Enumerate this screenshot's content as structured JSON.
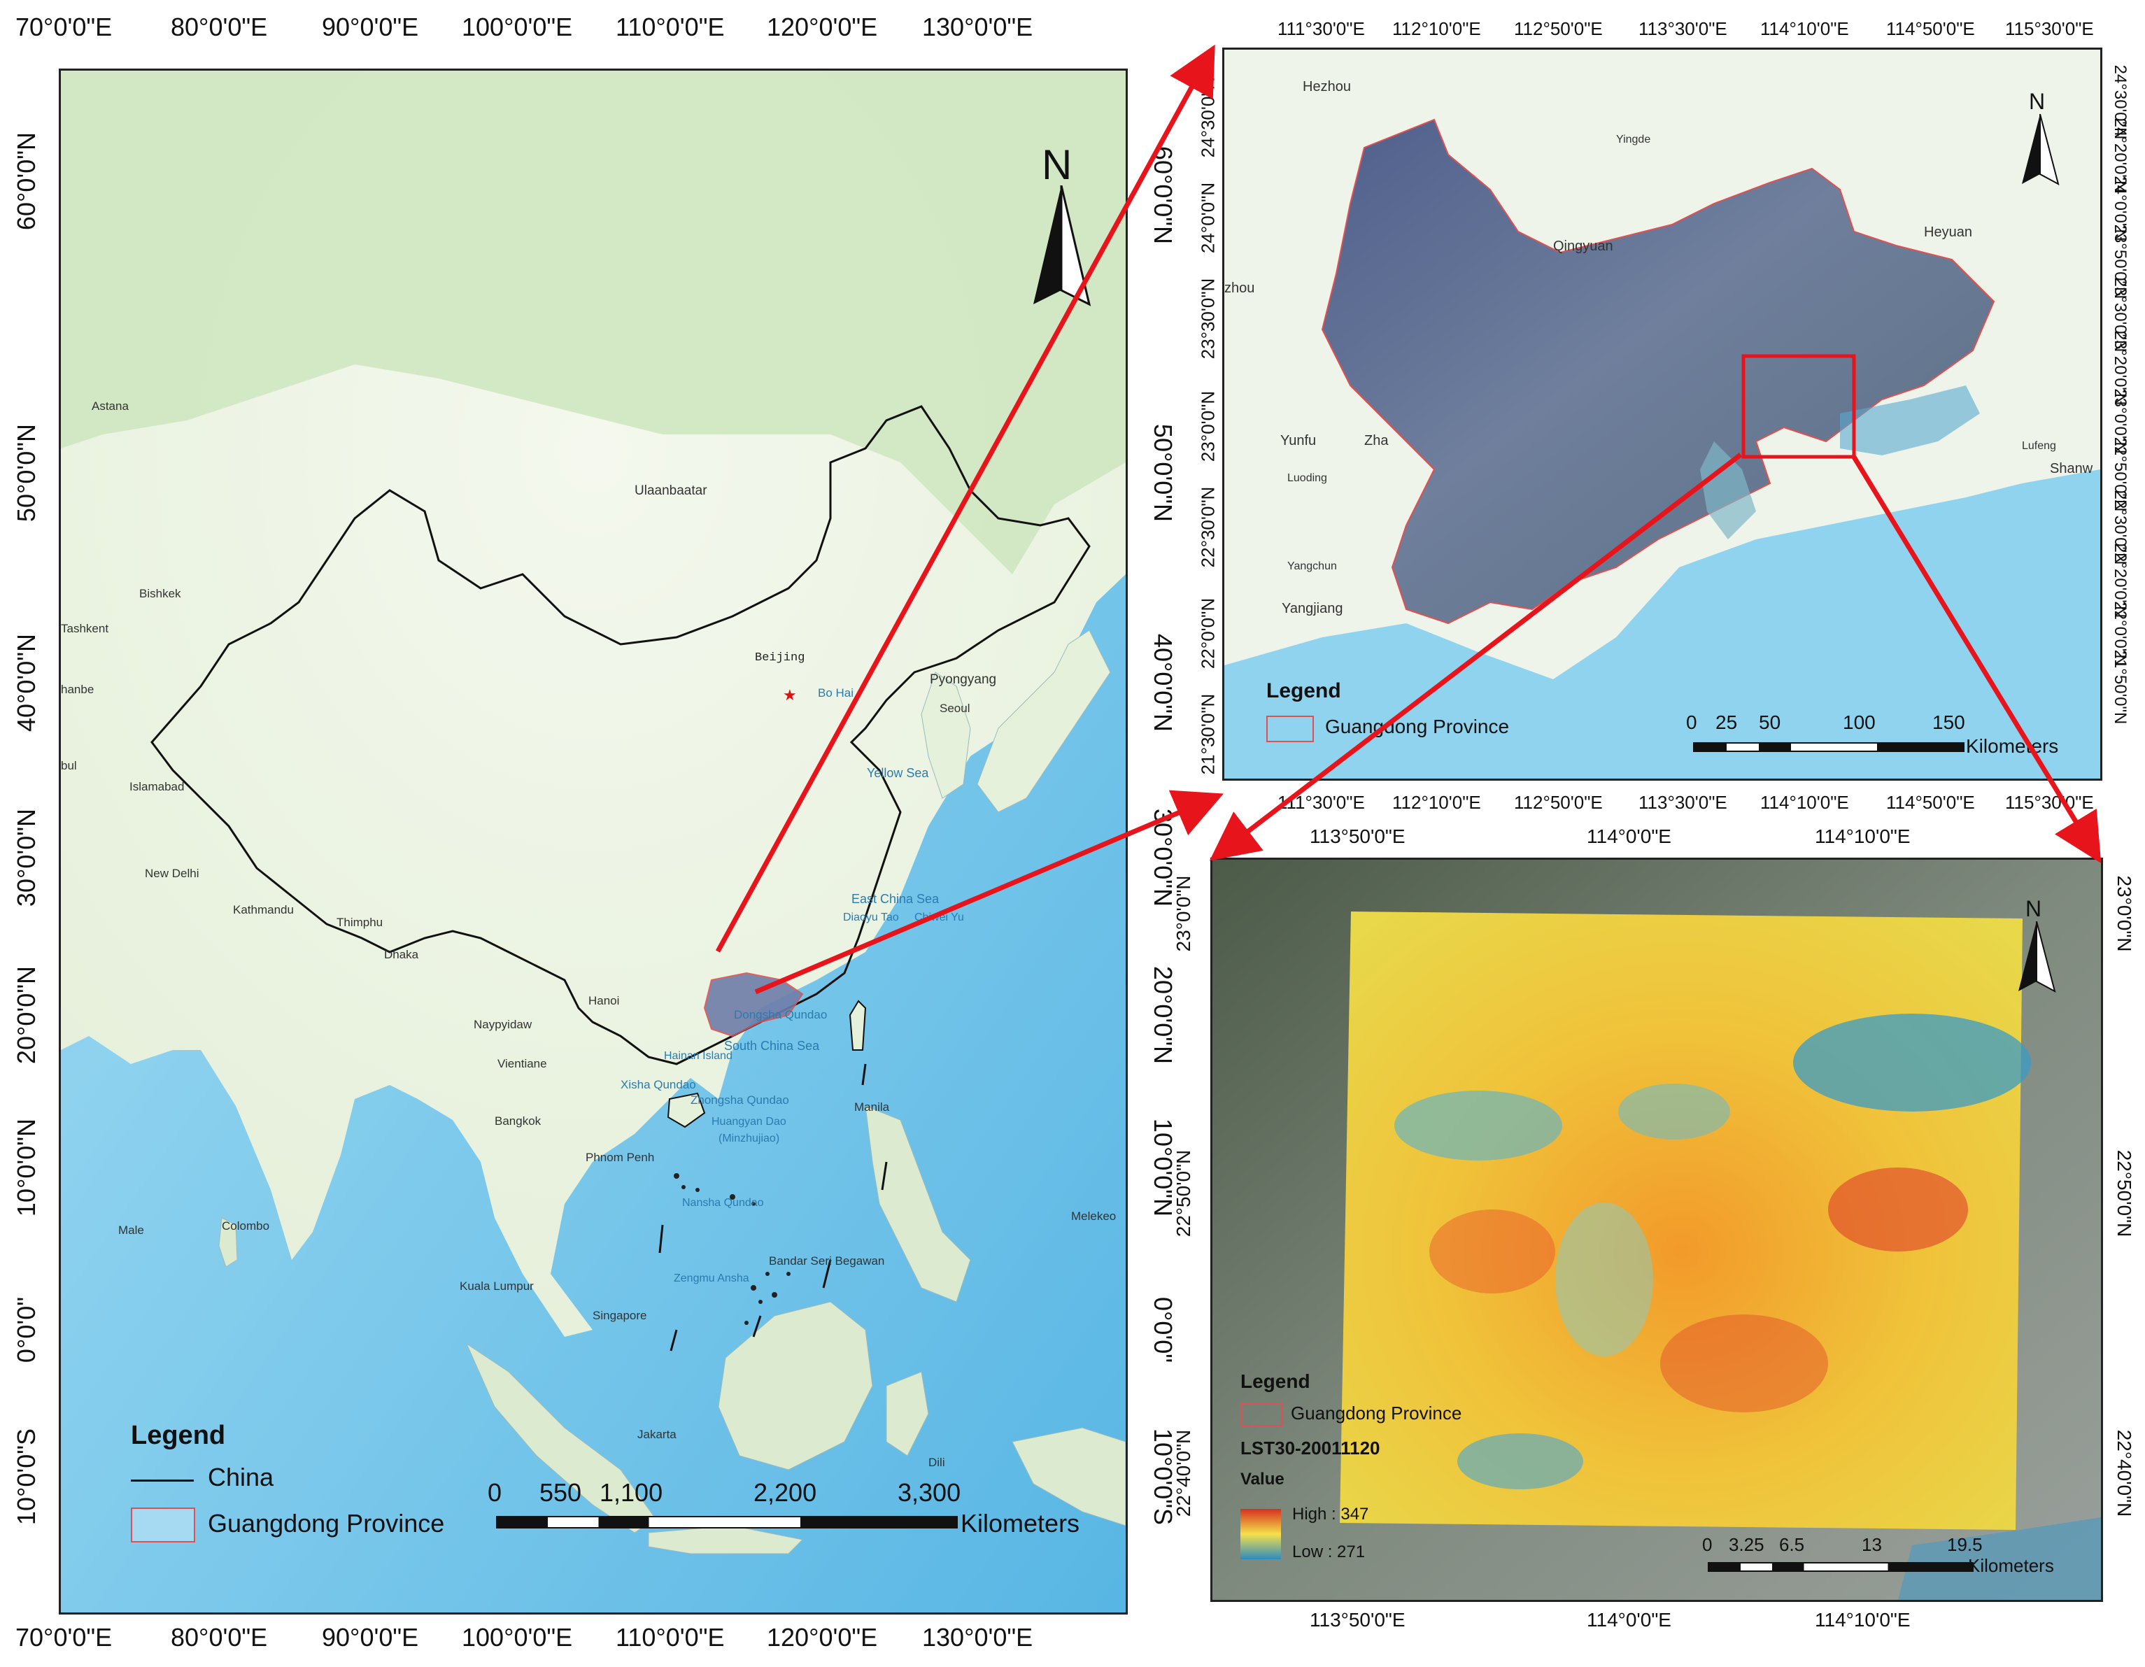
{
  "panel_a": {
    "lon_ticks": [
      "70°0'0\"E",
      "80°0'0\"E",
      "90°0'0\"E",
      "100°0'0\"E",
      "110°0'0\"E",
      "120°0'0\"E",
      "130°0'0\"E"
    ],
    "lat_ticks": [
      "60°0'0\"N",
      "50°0'0\"N",
      "40°0'0\"N",
      "30°0'0\"N",
      "20°0'0\"N",
      "10°0'0\"N",
      "0°0'0\"",
      "10°0'0\"S"
    ],
    "north": "N",
    "places": [
      {
        "name": "Astana"
      },
      {
        "name": "Ulaanbaatar"
      },
      {
        "name": "Bishkek"
      },
      {
        "name": "Tashkent"
      },
      {
        "name": "hanbe"
      },
      {
        "name": "bul"
      },
      {
        "name": "Islamabad"
      },
      {
        "name": "Beijing"
      },
      {
        "name": "Pyongyang"
      },
      {
        "name": "Seoul"
      },
      {
        "name": "Bo Hai"
      },
      {
        "name": "Yellow Sea"
      },
      {
        "name": "New Delhi"
      },
      {
        "name": "Kathmandu"
      },
      {
        "name": "Thimphu"
      },
      {
        "name": "Dhaka"
      },
      {
        "name": "East China Sea"
      },
      {
        "name": "Diaoyu Tao"
      },
      {
        "name": "Chiwei Yu"
      },
      {
        "name": "Hanoi"
      },
      {
        "name": "Naypyidaw"
      },
      {
        "name": "Dongsha Qundao"
      },
      {
        "name": "Vientiane"
      },
      {
        "name": "Hainan Island"
      },
      {
        "name": "South China Sea"
      },
      {
        "name": "Xisha Qundao"
      },
      {
        "name": "Zhongsha Qundao"
      },
      {
        "name": "Manila"
      },
      {
        "name": "Bangkok"
      },
      {
        "name": "Huangyan Dao"
      },
      {
        "name": "(Minzhujiao)"
      },
      {
        "name": "Phnom Penh"
      },
      {
        "name": "Nansha Qundao"
      },
      {
        "name": "Male"
      },
      {
        "name": "Colombo"
      },
      {
        "name": "Melekeo"
      },
      {
        "name": "Bandar Seri Begawan"
      },
      {
        "name": "Zengmu Ansha"
      },
      {
        "name": "Kuala Lumpur"
      },
      {
        "name": "Singapore"
      },
      {
        "name": "Jakarta"
      },
      {
        "name": "Dili"
      }
    ],
    "legend": {
      "title": "Legend",
      "items": [
        "China",
        "Guangdong Province"
      ]
    },
    "scale": {
      "ticks": [
        "0",
        "550",
        "1,100",
        "2,200",
        "3,300"
      ],
      "unit": "Kilometers"
    }
  },
  "panel_b": {
    "lon_ticks": [
      "111°30'0\"E",
      "112°10'0\"E",
      "112°50'0\"E",
      "113°30'0\"E",
      "114°10'0\"E",
      "114°50'0\"E",
      "115°30'0\"E"
    ],
    "lat_ticks": [
      "24°30'0\"N",
      "24°0'0\"N",
      "23°30'0\"N",
      "23°0'0\"N",
      "22°30'0\"N",
      "22°0'0\"N",
      "21°30'0\"N"
    ],
    "lat_ticks_right": [
      "24°30'0\"N",
      "24°20'0\"N",
      "24°0'0\"N",
      "23°50'0\"N",
      "23°30'0\"N",
      "23°20'0\"N",
      "23°0'0\"N",
      "22°50'0\"N",
      "22°30'0\"N",
      "22°20'0\"N",
      "22°0'0\"N",
      "21°50'0\"N"
    ],
    "north": "N",
    "places": [
      {
        "name": "Hezhou"
      },
      {
        "name": "Yingde"
      },
      {
        "name": "Qingyuan"
      },
      {
        "name": "Heyuan"
      },
      {
        "name": "Yunfu"
      },
      {
        "name": "Zha"
      },
      {
        "name": "Luoding"
      },
      {
        "name": "Yangchun"
      },
      {
        "name": "Yangjiang"
      },
      {
        "name": "Lufeng"
      },
      {
        "name": "Shanw"
      },
      {
        "name": "zhou"
      }
    ],
    "legend": {
      "title": "Legend",
      "items": [
        "Guangdong Province"
      ]
    },
    "scale": {
      "ticks": [
        "0",
        "25",
        "50",
        "100",
        "150"
      ],
      "unit": "Kilometers"
    }
  },
  "panel_c": {
    "lon_ticks": [
      "113°50'0\"E",
      "114°0'0\"E",
      "114°10'0\"E"
    ],
    "lat_ticks": [
      "23°0'0\"N",
      "22°50'0\"N",
      "22°40'0\"N"
    ],
    "north": "N",
    "legend": {
      "title": "Legend",
      "items": [
        "Guangdong Province"
      ],
      "layer": "LST30-20011120",
      "value_label": "Value",
      "high": "High : 347",
      "low": "Low : 271"
    },
    "scale": {
      "ticks": [
        "0",
        "3.25",
        "6.5",
        "13",
        "19.5"
      ],
      "unit": "Kilometers"
    }
  },
  "colors": {
    "land": "#e8f3e0",
    "land_green": "#cfe8c4",
    "sea": "#9cd8f0",
    "deep_sea": "#4fb2e0",
    "china_border": "#111111",
    "guangdong": "#e05050",
    "arrow": "#e8141c",
    "lst_high": "#d7301f",
    "lst_mid": "#f5d84a",
    "lst_low": "#2e8bc0"
  }
}
